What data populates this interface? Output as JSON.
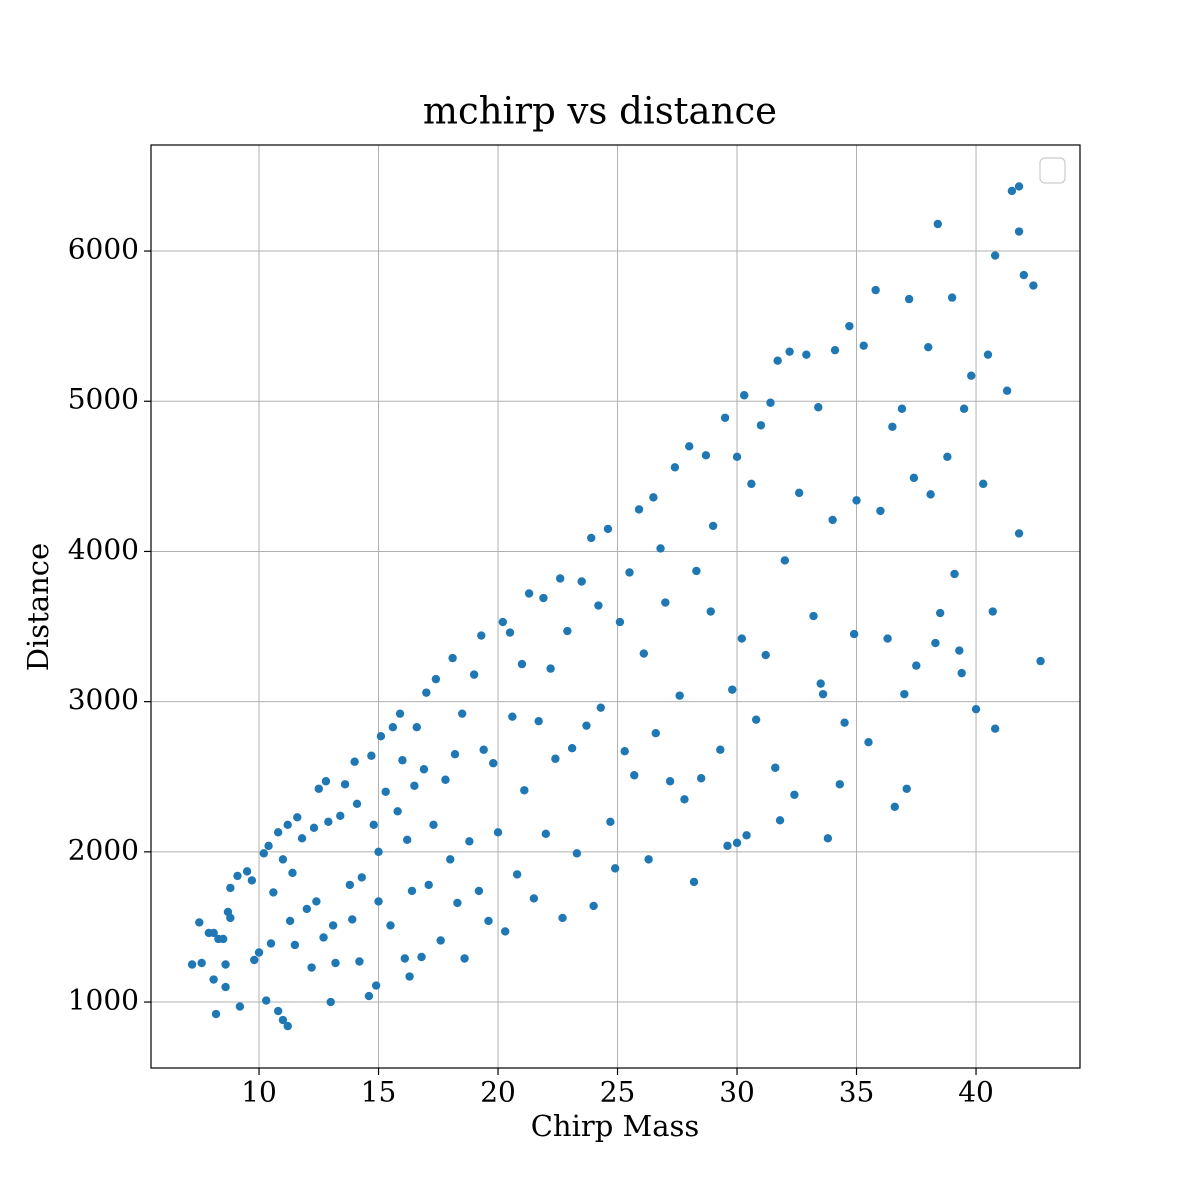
{
  "chart_data": {
    "type": "scatter",
    "title": "mchirp vs distance",
    "xlabel": "Chirp Mass",
    "ylabel": "Distance",
    "color": "#1f77b4",
    "grid": true,
    "legend": "upper right",
    "xlim": [
      5.48,
      44.35
    ],
    "ylim": [
      561,
      6706
    ],
    "xticks": [
      10,
      15,
      20,
      25,
      30,
      35,
      40
    ],
    "yticks": [
      1000,
      2000,
      3000,
      4000,
      5000,
      6000
    ],
    "x": [
      7.2,
      7.5,
      7.6,
      7.9,
      8.1,
      8.1,
      8.2,
      8.3,
      8.5,
      8.6,
      8.6,
      8.7,
      8.8,
      8.8,
      9.1,
      9.2,
      9.5,
      9.7,
      9.8,
      10.0,
      10.2,
      10.3,
      10.4,
      10.5,
      10.6,
      10.8,
      10.8,
      11.0,
      11.0,
      11.2,
      11.2,
      11.3,
      11.4,
      11.5,
      11.6,
      11.8,
      12.0,
      12.2,
      12.3,
      12.4,
      12.5,
      12.7,
      12.8,
      12.9,
      13.0,
      13.1,
      13.2,
      13.4,
      13.6,
      13.8,
      13.9,
      14.0,
      14.1,
      14.2,
      14.3,
      14.6,
      14.7,
      14.8,
      14.9,
      15.0,
      15.0,
      15.1,
      15.3,
      15.5,
      15.6,
      15.8,
      15.9,
      16.0,
      16.1,
      16.2,
      16.3,
      16.4,
      16.5,
      16.6,
      16.8,
      16.9,
      17.0,
      17.1,
      17.3,
      17.4,
      17.6,
      17.8,
      18.0,
      18.1,
      18.2,
      18.3,
      18.5,
      18.6,
      18.8,
      19.0,
      19.2,
      19.3,
      19.4,
      19.6,
      19.8,
      20.0,
      20.2,
      20.3,
      20.5,
      20.6,
      20.8,
      21.0,
      21.1,
      21.3,
      21.5,
      21.7,
      21.9,
      22.0,
      22.2,
      22.4,
      22.6,
      22.7,
      22.9,
      23.1,
      23.3,
      23.5,
      23.7,
      23.9,
      24.0,
      24.2,
      24.3,
      24.6,
      24.7,
      24.9,
      25.1,
      25.3,
      25.5,
      25.7,
      25.9,
      26.1,
      26.3,
      26.5,
      26.6,
      26.8,
      27.0,
      27.2,
      27.4,
      27.6,
      27.8,
      28.0,
      28.2,
      28.3,
      28.5,
      28.7,
      28.9,
      29.0,
      29.3,
      29.5,
      29.6,
      29.8,
      30.0,
      30.2,
      30.3,
      30.4,
      30.6,
      30.8,
      31.0,
      31.2,
      31.4,
      31.6,
      31.7,
      32.0,
      32.2,
      32.4,
      32.6,
      32.9,
      33.2,
      33.4,
      33.6,
      33.8,
      34.0,
      34.1,
      34.3,
      34.5,
      34.7,
      34.9,
      35.0,
      35.3,
      35.5,
      35.8,
      36.0,
      36.3,
      36.5,
      36.6,
      36.9,
      37.1,
      37.2,
      37.4,
      37.5,
      38.0,
      38.1,
      38.3,
      38.4,
      38.5,
      38.8,
      39.0,
      39.1,
      39.3,
      39.5,
      39.8,
      40.0,
      40.3,
      40.5,
      40.7,
      40.8,
      41.3,
      41.5,
      41.8,
      42.0,
      42.4,
      42.7,
      41.8,
      41.8,
      40.8,
      39.4,
      37.0,
      33.5,
      31.8,
      30.0
    ],
    "values": [
      1250,
      1530,
      1260,
      1460,
      1460,
      1150,
      920,
      1420,
      1420,
      1100,
      1250,
      1600,
      1560,
      1760,
      1840,
      970,
      1870,
      1810,
      1280,
      1330,
      1990,
      1010,
      2040,
      1390,
      1730,
      940,
      2130,
      1950,
      880,
      2180,
      840,
      1540,
      1860,
      1380,
      2230,
      2090,
      1620,
      1230,
      2160,
      1670,
      2420,
      1430,
      2470,
      2200,
      1000,
      1510,
      1260,
      2240,
      2450,
      1780,
      1550,
      2600,
      2320,
      1270,
      1830,
      1040,
      2640,
      2180,
      1110,
      1670,
      2000,
      2770,
      2400,
      1510,
      2830,
      2270,
      2920,
      2610,
      1290,
      2080,
      1170,
      1740,
      2440,
      2830,
      1300,
      2550,
      3060,
      1780,
      2180,
      3150,
      1410,
      2480,
      1950,
      3290,
      2650,
      1660,
      2920,
      1290,
      2070,
      3180,
      1740,
      3440,
      2680,
      1540,
      2590,
      2130,
      3530,
      1470,
      3460,
      2900,
      1850,
      3250,
      2410,
      3720,
      1690,
      2870,
      3690,
      2120,
      3220,
      2620,
      3820,
      1560,
      3470,
      2690,
      1990,
      3800,
      2840,
      4090,
      1640,
      3640,
      2960,
      4150,
      2200,
      1890,
      3530,
      2670,
      3860,
      2510,
      4280,
      3320,
      1950,
      4360,
      2790,
      4020,
      3660,
      2470,
      4560,
      3040,
      2350,
      4700,
      1800,
      3870,
      2490,
      4640,
      3600,
      4170,
      2680,
      4890,
      2040,
      3080,
      4630,
      3420,
      5040,
      2110,
      4450,
      2880,
      4840,
      3310,
      4990,
      2560,
      5270,
      3940,
      5330,
      2380,
      4390,
      5310,
      3570,
      4960,
      3050,
      2090,
      4210,
      5340,
      2450,
      2860,
      5500,
      3450,
      4340,
      5370,
      2730,
      5740,
      4270,
      3420,
      4830,
      2300,
      4950,
      2420,
      5680,
      4490,
      3240,
      5360,
      4380,
      3390,
      6180,
      3590,
      4630,
      5690,
      3850,
      3340,
      4950,
      5170,
      2950,
      4450,
      5310,
      3600,
      5970,
      5070,
      6400,
      6130,
      5840,
      5770,
      3270,
      6430,
      4120,
      2820,
      3190,
      3050,
      3120,
      2210,
      2060
    ]
  }
}
